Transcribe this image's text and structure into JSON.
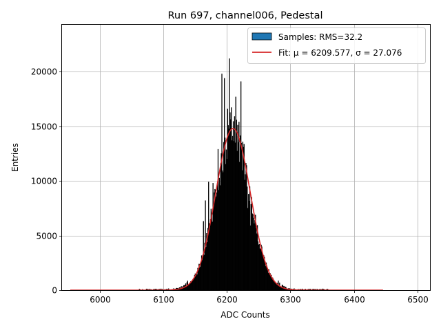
{
  "chart_data": {
    "type": "bar",
    "title": "Run 697, channel006, Pedestal",
    "xlabel": "ADC Counts",
    "ylabel": "Entries",
    "xlim": [
      5940,
      6520
    ],
    "ylim": [
      0,
      24300
    ],
    "xticks": [
      6000,
      6100,
      6200,
      6300,
      6400,
      6500
    ],
    "yticks": [
      0,
      5000,
      10000,
      15000,
      20000
    ],
    "grid": true,
    "legend_position": "top-right",
    "histogram": {
      "name": "Samples: RMS=32.2",
      "color": "#1f77b4",
      "bin_width": 2,
      "mean": 6209.577,
      "sigma": 27.076,
      "peak": 14800,
      "range": [
        6060,
        6360
      ],
      "spikes": [
        {
          "x": 6163,
          "y": 6300
        },
        {
          "x": 6166,
          "y": 8200
        },
        {
          "x": 6171,
          "y": 9900
        },
        {
          "x": 6178,
          "y": 9800
        },
        {
          "x": 6186,
          "y": 12900
        },
        {
          "x": 6192,
          "y": 19800
        },
        {
          "x": 6196,
          "y": 19400
        },
        {
          "x": 6201,
          "y": 16600
        },
        {
          "x": 6204,
          "y": 21200
        },
        {
          "x": 6209,
          "y": 14100
        },
        {
          "x": 6212,
          "y": 15900
        },
        {
          "x": 6214,
          "y": 17700
        },
        {
          "x": 6219,
          "y": 15400
        },
        {
          "x": 6222,
          "y": 19100
        },
        {
          "x": 6226,
          "y": 13100
        },
        {
          "x": 6229,
          "y": 10600
        },
        {
          "x": 6233,
          "y": 7500
        },
        {
          "x": 6237,
          "y": 5900
        },
        {
          "x": 6243,
          "y": 6100
        },
        {
          "x": 6251,
          "y": 4200
        }
      ]
    },
    "fit": {
      "name": "Fit: μ = 6209.577, σ = 27.076",
      "color": "#d62728",
      "x_range": [
        5953,
        6446
      ],
      "amplitude": 14800,
      "mean": 6209.577,
      "sigma": 27.076
    }
  }
}
